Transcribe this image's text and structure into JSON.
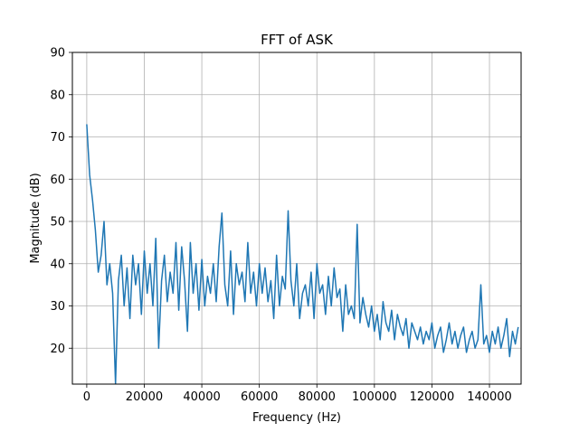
{
  "chart_data": {
    "type": "line",
    "title": "FFT of ASK",
    "xlabel": "Frequency (Hz)",
    "ylabel": "Magnitude (dB)",
    "xlim": [
      -5000,
      151000
    ],
    "ylim": [
      11.5,
      90
    ],
    "xticks": [
      0,
      20000,
      40000,
      60000,
      80000,
      100000,
      120000,
      140000
    ],
    "yticks": [
      20,
      30,
      40,
      50,
      60,
      70,
      80,
      90
    ],
    "grid": true,
    "legend": "none",
    "series": [
      {
        "color": "#1f77b4",
        "x_start": 0,
        "x_step": 1000,
        "values": [
          73.0,
          61.0,
          55.0,
          48.0,
          38.0,
          42.0,
          50.0,
          35.0,
          40.0,
          33.0,
          11.5,
          36.0,
          42.0,
          30.0,
          39.0,
          27.0,
          42.0,
          35.0,
          40.0,
          28.0,
          43.0,
          33.0,
          40.0,
          30.0,
          46.0,
          20.0,
          36.0,
          42.0,
          31.0,
          38.0,
          33.0,
          45.0,
          29.0,
          44.0,
          36.0,
          24.0,
          45.0,
          33.0,
          40.0,
          29.0,
          41.0,
          30.0,
          37.0,
          33.0,
          40.0,
          31.0,
          44.0,
          52.0,
          35.0,
          30.0,
          43.0,
          28.0,
          40.0,
          35.0,
          38.0,
          31.0,
          45.0,
          33.0,
          38.0,
          30.0,
          40.0,
          33.0,
          39.0,
          31.0,
          36.0,
          27.0,
          42.0,
          30.0,
          37.0,
          34.0,
          52.5,
          36.0,
          30.0,
          40.0,
          27.0,
          33.0,
          35.0,
          30.0,
          38.0,
          27.0,
          40.0,
          33.0,
          35.0,
          28.0,
          37.0,
          30.0,
          39.0,
          32.0,
          34.0,
          24.0,
          35.0,
          28.0,
          30.0,
          27.0,
          49.3,
          26.0,
          32.0,
          28.0,
          25.0,
          30.0,
          24.0,
          28.0,
          22.0,
          31.0,
          26.0,
          24.0,
          29.0,
          22.0,
          28.0,
          25.0,
          23.0,
          27.0,
          20.0,
          26.0,
          24.0,
          22.0,
          25.0,
          21.0,
          24.0,
          22.0,
          26.0,
          20.0,
          23.0,
          25.0,
          19.0,
          22.0,
          26.0,
          21.0,
          24.0,
          20.0,
          23.0,
          25.0,
          19.0,
          22.0,
          24.0,
          20.0,
          22.0,
          35.0,
          21.0,
          23.0,
          19.0,
          24.0,
          21.0,
          25.0,
          20.0,
          23.0,
          27.0,
          18.0,
          24.0,
          21.0,
          25.0
        ]
      }
    ]
  }
}
